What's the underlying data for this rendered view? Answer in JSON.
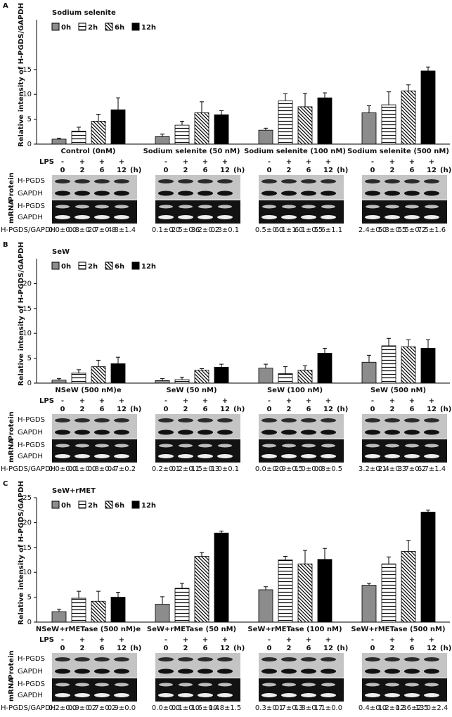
{
  "chart_data": [
    {
      "type": "bar",
      "panel": "A",
      "title": "Sodium selenite",
      "y_label": "Relative intensity of H-PGDS/GAPDH",
      "categories": [
        "Control (0nM)",
        "Sodium selenite (50 nM)",
        "Sodium selenite (100 nM)",
        "Sodium selenite (500 nM)"
      ],
      "series": [
        {
          "name": "0h",
          "color": "#8c8c8c",
          "values": [
            1.0,
            1.5,
            2.8,
            6.3
          ],
          "errors": [
            0.2,
            0.5,
            0.4,
            1.4
          ]
        },
        {
          "name": "2h",
          "color": "#000000",
          "hatch": "horizontal",
          "values": [
            2.6,
            3.8,
            8.7,
            7.9
          ],
          "errors": [
            0.8,
            0.8,
            1.4,
            2.6
          ]
        },
        {
          "name": "6h",
          "color": "#000000",
          "hatch": "diagonal",
          "values": [
            4.6,
            6.3,
            7.5,
            10.7
          ],
          "errors": [
            1.4,
            2.2,
            2.7,
            1.2
          ]
        },
        {
          "name": "12h",
          "color": "#000000",
          "values": [
            6.9,
            5.9,
            9.3,
            14.7
          ],
          "errors": [
            2.4,
            0.8,
            1.0,
            0.8
          ]
        }
      ],
      "ylim": [
        0,
        25
      ],
      "yticks": [
        0,
        5,
        10,
        15
      ],
      "blot": {
        "lps_label": "LPS",
        "lps": [
          "-",
          "+",
          "+",
          "+"
        ],
        "times": [
          "0",
          "2",
          "6",
          "12"
        ],
        "time_unit": "(h)",
        "protein": "Protein",
        "mrna": "mRNA",
        "target": "H-PGDS",
        "control": "GAPDH",
        "ratio_label": "H-PGDS/GAPDH",
        "ratios": [
          [
            "0.0±0.0",
            "0.8±0.0",
            "2.7±0.8",
            "4.8±1.4"
          ],
          [
            "0.1±0.0",
            "2.5±0.6",
            "3.2±0.2",
            "0.3±0.1"
          ],
          [
            "0.5±0.0",
            "6.1±1.0",
            "6.1±0.5",
            "5.6±1.1"
          ],
          [
            "2.4±0.0",
            "5.3±0.5",
            "5.5±0.2",
            "7.5±1.6"
          ]
        ]
      }
    },
    {
      "type": "bar",
      "panel": "B",
      "title": "SeW",
      "y_label": "Relative intensity of H-PGDS/GAPDH",
      "categories": [
        "NSeW (500 nM)e",
        "SeW (50 nM)",
        "SeW (100 nM)",
        "SeW (500 nM)"
      ],
      "series": [
        {
          "name": "0h",
          "color": "#8c8c8c",
          "values": [
            0.6,
            0.5,
            3.0,
            4.2
          ],
          "errors": [
            0.3,
            0.4,
            0.8,
            1.4
          ]
        },
        {
          "name": "2h",
          "color": "#000000",
          "hatch": "horizontal",
          "values": [
            2.0,
            0.7,
            1.9,
            7.5
          ],
          "errors": [
            0.7,
            0.5,
            1.4,
            1.5
          ]
        },
        {
          "name": "6h",
          "color": "#000000",
          "hatch": "diagonal",
          "values": [
            3.3,
            2.6,
            2.6,
            7.3
          ],
          "errors": [
            1.3,
            0.3,
            0.9,
            1.4
          ]
        },
        {
          "name": "12h",
          "color": "#000000",
          "values": [
            3.9,
            3.2,
            6.0,
            7.0
          ],
          "errors": [
            1.3,
            0.6,
            1.0,
            1.7
          ]
        }
      ],
      "ylim": [
        0,
        25
      ],
      "yticks": [
        0,
        5,
        10,
        15,
        20
      ],
      "blot": {
        "lps_label": "LPS",
        "lps": [
          "-",
          "+",
          "+",
          "+"
        ],
        "times": [
          "0",
          "2",
          "6",
          "12"
        ],
        "time_unit": "(h)",
        "protein": "Protein",
        "mrna": "mRNA",
        "target": "H-PGDS",
        "control": "GAPDH",
        "ratio_label": "H-PGDS/GAPDH",
        "ratios": [
          [
            "0.0±0.0",
            "0.1±0.0",
            "0.8±0.4",
            "0.7±0.2"
          ],
          [
            "0.2±0.1",
            "0.2±0.1",
            "1.5±0.3",
            "1.0±0.1"
          ],
          [
            "0.0±0.0",
            "2.9±0.5",
            "1.0±0.0",
            "0.8±0.5"
          ],
          [
            "3.2±0.1",
            "2.4±0.3",
            "3.7±0.2",
            "6.7±1.4"
          ]
        ]
      }
    },
    {
      "type": "bar",
      "panel": "C",
      "title": "SeW+rMET",
      "y_label": "Relative intensity of H-PGDS/GAPDH",
      "categories": [
        "NSeW+rMETase (500 nM)e",
        "SeW+rMETase (50 nM)",
        "SeW+rMETase (100 nM)",
        "SeW+rMETase (500 nM)"
      ],
      "series": [
        {
          "name": "0h",
          "color": "#8c8c8c",
          "values": [
            2.1,
            3.6,
            6.5,
            7.4
          ],
          "errors": [
            0.5,
            1.5,
            0.6,
            0.4
          ]
        },
        {
          "name": "2h",
          "color": "#000000",
          "hatch": "horizontal",
          "values": [
            4.8,
            6.8,
            12.5,
            11.7
          ],
          "errors": [
            1.4,
            1.0,
            0.7,
            1.4
          ]
        },
        {
          "name": "6h",
          "color": "#000000",
          "hatch": "diagonal",
          "values": [
            4.2,
            13.2,
            11.7,
            14.2
          ],
          "errors": [
            2.0,
            0.8,
            2.7,
            2.2
          ]
        },
        {
          "name": "12h",
          "color": "#000000",
          "values": [
            5.0,
            17.9,
            12.6,
            22.1
          ],
          "errors": [
            1.0,
            0.4,
            2.2,
            0.4
          ]
        }
      ],
      "ylim": [
        0,
        25
      ],
      "yticks": [
        0,
        5,
        10,
        15,
        20,
        25
      ],
      "blot": {
        "lps_label": "LPS",
        "lps": [
          "-",
          "+",
          "+",
          "+"
        ],
        "times": [
          "0",
          "2",
          "6",
          "12"
        ],
        "time_unit": "(h)",
        "protein": "Protein",
        "mrna": "mRNA",
        "target": "H-PGDS",
        "control": "GAPDH",
        "ratio_label": "H-PGDS/GAPDH",
        "ratios": [
          [
            "0.2±0.0",
            "0.9±0.2",
            "0.7±0.2",
            "0.9±0.0"
          ],
          [
            "0.0±0.0",
            "0.1±0.0",
            "1.6±0.4",
            "10.8±1.5"
          ],
          [
            "0.3±0.1",
            "0.7±0.3",
            "1.8±0.7",
            "1.1±0.0"
          ],
          [
            "0.4±0.0",
            "1.2±0.3",
            "12.6±2.5",
            "13.0±2.4"
          ]
        ]
      }
    }
  ]
}
